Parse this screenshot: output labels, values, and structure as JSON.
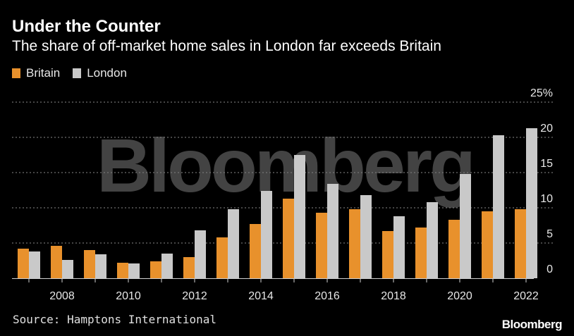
{
  "chart_data": {
    "type": "bar",
    "title": "Under the Counter",
    "subtitle": "The share of off-market home sales in London far exceeds Britain",
    "categories": [
      "2007",
      "2008",
      "2009",
      "2010",
      "2011",
      "2012",
      "2013",
      "2014",
      "2015",
      "2016",
      "2017",
      "2018",
      "2019",
      "2020",
      "2021",
      "2022"
    ],
    "tick_labels": [
      "2008",
      "2010",
      "2012",
      "2014",
      "2016",
      "2018",
      "2020",
      "2022"
    ],
    "series": [
      {
        "name": "Britain",
        "color": "#e8912c",
        "values": [
          4.2,
          4.6,
          4.0,
          2.2,
          2.4,
          3.0,
          5.8,
          7.7,
          11.3,
          9.3,
          9.8,
          6.7,
          7.2,
          8.3,
          9.5,
          9.8
        ]
      },
      {
        "name": "London",
        "color": "#c9c9c9",
        "values": [
          3.8,
          2.6,
          3.4,
          2.1,
          3.5,
          6.8,
          9.8,
          12.4,
          17.5,
          13.4,
          11.8,
          8.8,
          10.8,
          14.8,
          20.3,
          21.3
        ]
      }
    ],
    "ylim": [
      0,
      25
    ],
    "y_ticks": [
      0,
      5,
      10,
      15,
      20,
      25
    ],
    "y_unit": "%",
    "grid": true,
    "legend": "top-left",
    "background": "#000000",
    "watermark": "Bloomberg"
  },
  "source": "Source: Hamptons International",
  "brand": "Bloomberg"
}
